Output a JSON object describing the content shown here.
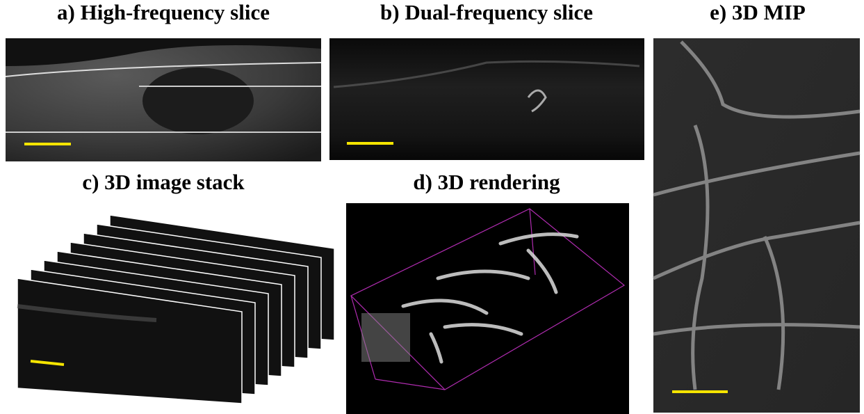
{
  "panels": [
    {
      "title": "a) High-frequency slice"
    },
    {
      "title": "b) Dual-frequency slice"
    },
    {
      "title": "c) 3D image stack"
    },
    {
      "title": "d) 3D rendering"
    },
    {
      "title": "e) 3D MIP"
    }
  ]
}
